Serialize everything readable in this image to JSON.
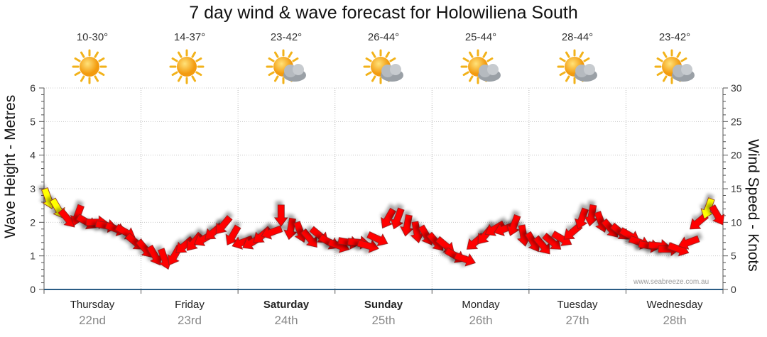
{
  "chart_data": {
    "type": "line",
    "title": "7 day wind & wave forecast for Holowiliena South",
    "ylabel": "Wave Height - Metres",
    "y2label": "Wind Speed - Knots",
    "ylim": [
      0,
      6
    ],
    "y2lim": [
      0,
      30
    ],
    "yticks": [
      "0",
      "1",
      "2",
      "3",
      "4",
      "5",
      "6"
    ],
    "y2ticks": [
      "0",
      "5",
      "10",
      "15",
      "20",
      "25",
      "30"
    ],
    "watermark": "www.seabreeze.com.au",
    "days": [
      {
        "name": "Thursday",
        "date": "22nd",
        "temp": "10-30°",
        "icon": "sun-icon",
        "bold": false
      },
      {
        "name": "Friday",
        "date": "23rd",
        "temp": "14-37°",
        "icon": "sun-icon",
        "bold": false
      },
      {
        "name": "Saturday",
        "date": "24th",
        "temp": "23-42°",
        "icon": "partly-cloudy-icon",
        "bold": true
      },
      {
        "name": "Sunday",
        "date": "25th",
        "temp": "26-44°",
        "icon": "partly-cloudy-icon",
        "bold": true
      },
      {
        "name": "Monday",
        "date": "26th",
        "temp": "25-44°",
        "icon": "partly-cloudy-icon",
        "bold": false
      },
      {
        "name": "Tuesday",
        "date": "27th",
        "temp": "28-44°",
        "icon": "partly-cloudy-icon",
        "bold": false
      },
      {
        "name": "Wednesday",
        "date": "28th",
        "temp": "23-42°",
        "icon": "partly-cloudy-icon",
        "bold": false
      }
    ],
    "series": [
      {
        "name": "Wind speed (knots)",
        "x_unit": "days from start of Thursday",
        "x": [
          0.0,
          0.1,
          0.2,
          0.3,
          0.4,
          0.5,
          0.6,
          0.7,
          0.8,
          0.9,
          1.0,
          1.1,
          1.2,
          1.3,
          1.4,
          1.5,
          1.6,
          1.7,
          1.8,
          1.9,
          2.0,
          2.1,
          2.2,
          2.3,
          2.4,
          2.5,
          2.6,
          2.7,
          2.8,
          2.9,
          3.0,
          3.1,
          3.2,
          3.3,
          3.4,
          3.5,
          3.6,
          3.7,
          3.8,
          3.9,
          4.0,
          4.1,
          4.2,
          4.3,
          4.4,
          4.5,
          4.6,
          4.7,
          4.8,
          4.9,
          5.0,
          5.1,
          5.2,
          5.3,
          5.4,
          5.5,
          5.6,
          5.7,
          5.8,
          5.9,
          6.0,
          6.1,
          6.2,
          6.3,
          6.4,
          6.5,
          6.6,
          6.7,
          6.8,
          6.9
        ],
        "values": [
          13.5,
          12,
          10.5,
          11,
          10,
          10,
          9.5,
          9,
          8.5,
          7,
          6,
          5,
          4.5,
          5,
          6.5,
          7,
          7.5,
          8.5,
          9.5,
          8,
          7,
          7,
          8,
          8.5,
          11,
          9,
          8.5,
          7.5,
          8,
          7,
          6.5,
          7,
          7,
          6.5,
          7.5,
          10.5,
          10.5,
          9.5,
          8.5,
          8,
          7,
          6.5,
          5,
          4.5,
          7,
          8,
          9,
          9,
          9.5,
          8,
          7,
          6.5,
          7,
          7.5,
          8.5,
          10.5,
          11,
          10,
          9,
          8.5,
          8,
          7,
          6.5,
          6.5,
          6,
          6,
          7,
          10,
          12,
          11
        ],
        "arrow_colors": {
          "light": "#ffff00",
          "strong": "#ff0000"
        }
      }
    ]
  }
}
